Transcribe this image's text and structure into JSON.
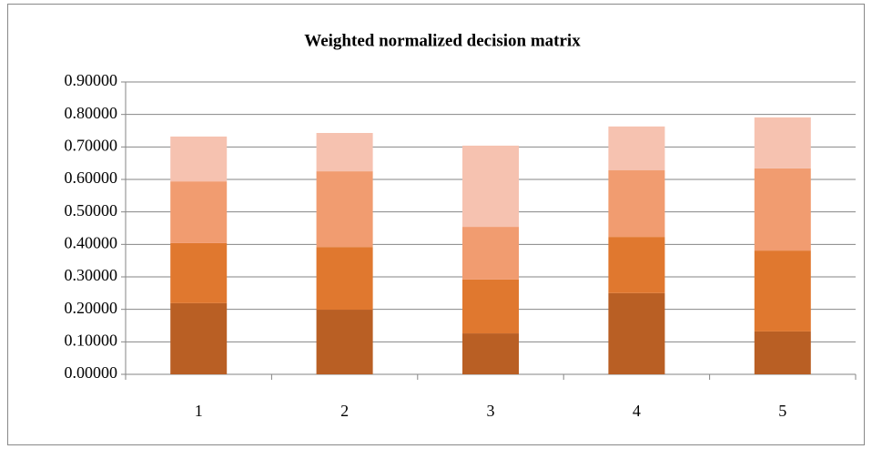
{
  "chart_data": {
    "type": "stacked_bar",
    "title": "Weighted normalized decision matrix",
    "categories": [
      "1",
      "2",
      "3",
      "4",
      "5"
    ],
    "series": [
      {
        "color": "#b95f24",
        "values": [
          0.219,
          0.199,
          0.126,
          0.25,
          0.132
        ]
      },
      {
        "color": "#e0782f",
        "values": [
          0.185,
          0.193,
          0.166,
          0.173,
          0.249
        ]
      },
      {
        "color": "#f19c70",
        "values": [
          0.19,
          0.233,
          0.162,
          0.205,
          0.253
        ]
      },
      {
        "color": "#f6c2b0",
        "values": [
          0.138,
          0.118,
          0.25,
          0.135,
          0.157
        ]
      }
    ],
    "ylim": [
      0,
      0.9
    ],
    "yticks": [
      {
        "value": 0,
        "label": "0.00000"
      },
      {
        "value": 0.1,
        "label": "0.10000"
      },
      {
        "value": 0.2,
        "label": "0.20000"
      },
      {
        "value": 0.3,
        "label": "0.30000"
      },
      {
        "value": 0.4,
        "label": "0.40000"
      },
      {
        "value": 0.5,
        "label": "0.50000"
      },
      {
        "value": 0.6,
        "label": "0.60000"
      },
      {
        "value": 0.7,
        "label": "0.70000"
      },
      {
        "value": 0.8,
        "label": "0.80000"
      },
      {
        "value": 0.9,
        "label": "0.90000"
      }
    ],
    "grid": true
  }
}
